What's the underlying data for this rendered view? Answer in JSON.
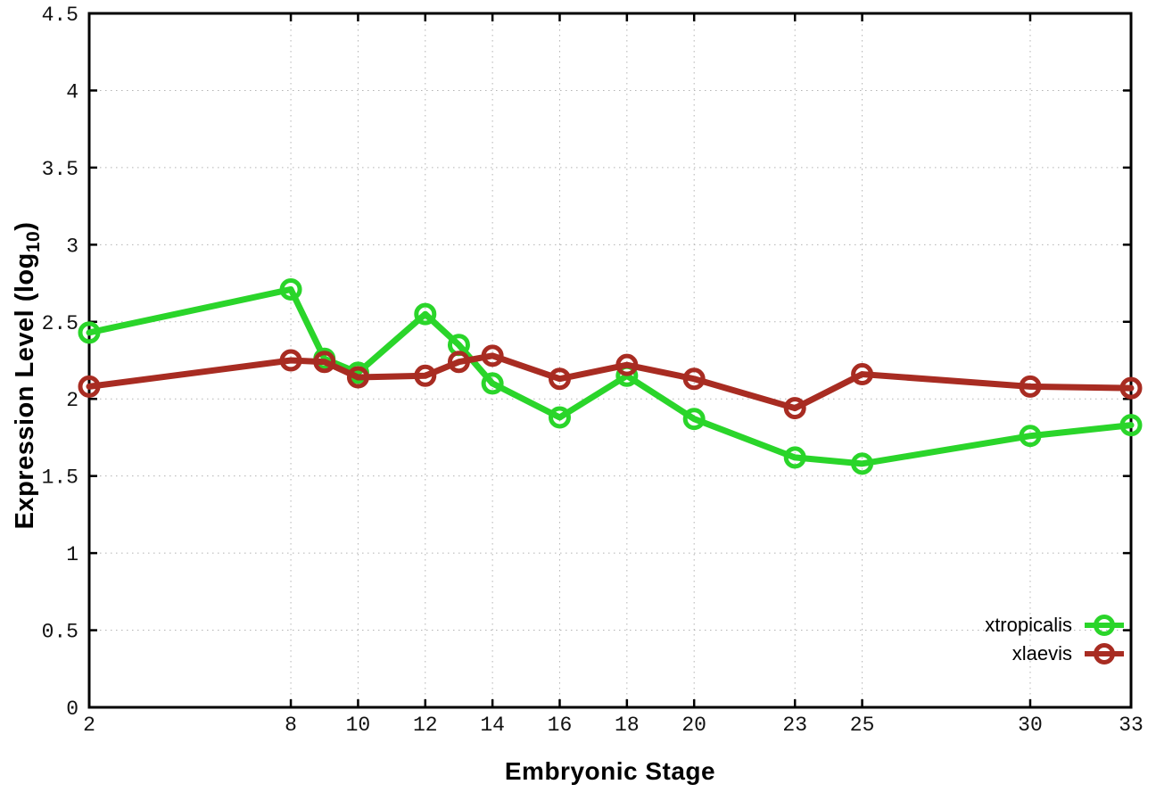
{
  "chart_data": {
    "type": "line",
    "title": "",
    "xlabel": "Embryonic Stage",
    "ylabel": {
      "pre": "Expression Level (log",
      "sub": "10",
      "post": ")"
    },
    "xlim": [
      2,
      33
    ],
    "ylim": [
      0,
      4.5
    ],
    "grid": true,
    "legend_position": "bottom-right",
    "x": [
      2,
      8,
      9,
      10,
      12,
      13,
      14,
      16,
      18,
      20,
      23,
      25,
      30,
      33
    ],
    "xtick_values": [
      2,
      8,
      10,
      12,
      14,
      16,
      18,
      20,
      23,
      25,
      30,
      33
    ],
    "xtick_labels": [
      "2",
      "8",
      "10",
      "12",
      "14",
      "16",
      "18",
      "20",
      "23",
      "25",
      "30",
      "33"
    ],
    "ytick_values": [
      0,
      0.5,
      1,
      1.5,
      2,
      2.5,
      3,
      3.5,
      4,
      4.5
    ],
    "ytick_labels": [
      "0",
      "0.5",
      "1",
      "1.5",
      "2",
      "2.5",
      "3",
      "3.5",
      "4",
      "4.5"
    ],
    "series": [
      {
        "name": "xtropicalis",
        "color": "#2ad52a",
        "values": [
          2.43,
          2.71,
          2.26,
          2.17,
          2.55,
          2.35,
          2.1,
          1.88,
          2.15,
          1.87,
          1.62,
          1.58,
          1.76,
          1.83
        ]
      },
      {
        "name": "xlaevis",
        "color": "#a82c22",
        "values": [
          2.08,
          2.25,
          2.24,
          2.14,
          2.15,
          2.24,
          2.28,
          2.13,
          2.22,
          2.13,
          1.94,
          2.16,
          2.08,
          2.07
        ]
      }
    ],
    "colors": {
      "axis": "#000000",
      "grid": "#b3b3b3",
      "background": "#ffffff",
      "text": "#000000"
    }
  }
}
